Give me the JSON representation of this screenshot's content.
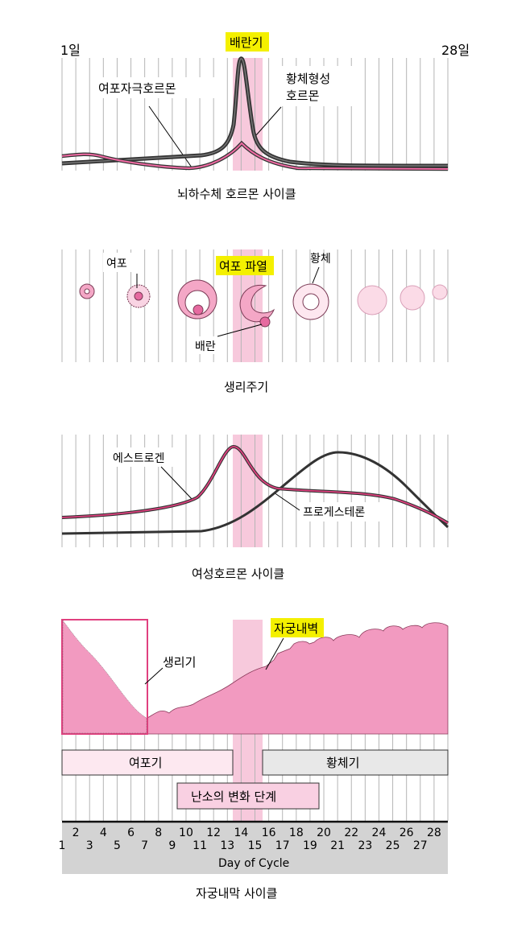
{
  "colors": {
    "pink_band": "#f7c9dc",
    "pink_line": "#e0407f",
    "dark_line": "#3a3a3a",
    "highlight": "#f4f000",
    "endometrium": "#f29ac0",
    "follicular_bar": "#fde8f0",
    "luteal_bar": "#e8e8e8",
    "axis_bar": "#d3d3d3"
  },
  "panel1": {
    "start_label": "1일",
    "end_label": "28일",
    "ovulation_label": "배란기",
    "fsh_label": "여포자극호르몬",
    "lh_label_line1": "황체형성",
    "lh_label_line2": "호르몬",
    "caption": "뇌하수체 호르몬 사이클"
  },
  "panel2": {
    "follicle_label": "여포",
    "rupture_label": "여포 파열",
    "corpus_luteum_label": "황체",
    "ovum_label": "배란",
    "caption": "생리주기"
  },
  "panel3": {
    "estrogen_label": "에스트로겐",
    "progesterone_label": "프로게스테론",
    "caption": "여성호르몬 사이클"
  },
  "panel4": {
    "endometrium_label": "자궁내벽",
    "menstruation_label": "생리기",
    "follicular_phase": "여포기",
    "luteal_phase": "황체기",
    "ovarian_phase": "난소의 변화 단계",
    "days_even": [
      "2",
      "4",
      "6",
      "8",
      "10",
      "12",
      "14",
      "16",
      "18",
      "20",
      "22",
      "24",
      "26",
      "28"
    ],
    "days_odd": [
      "1",
      "3",
      "5",
      "7",
      "9",
      "11",
      "13",
      "15",
      "17",
      "19",
      "21",
      "23",
      "25",
      "27"
    ],
    "axis_title": "Day of Cycle",
    "caption": "자궁내막 사이클"
  }
}
